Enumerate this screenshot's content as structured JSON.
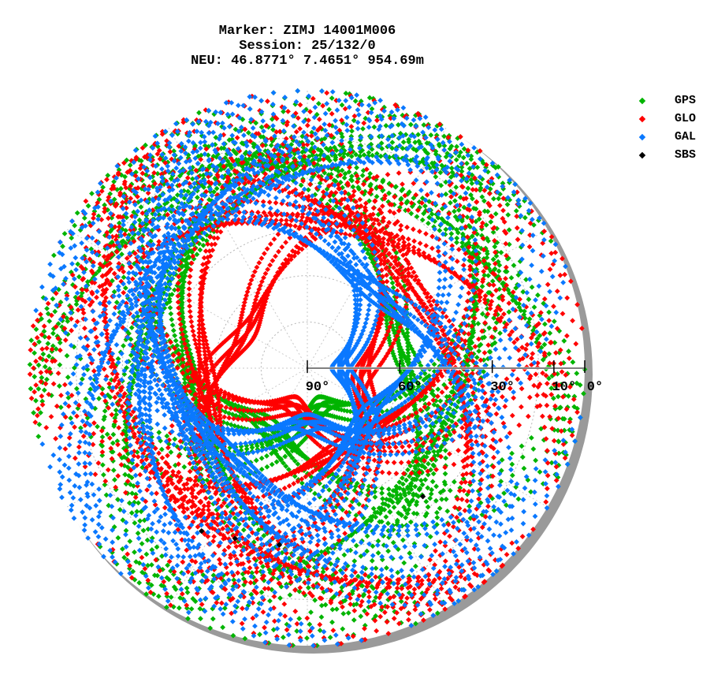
{
  "header": {
    "line1": "Marker: ZIMJ 14001M006",
    "line2": "Session: 25/132/0",
    "line3": "NEU: 46.8771° 7.4651° 954.69m"
  },
  "chart_data": {
    "type": "scatter",
    "projection": "polar sky plot (azimuth / elevation)",
    "radial_axis": "elevation",
    "elevation_ticks": [
      {
        "value": 90,
        "label": "90°"
      },
      {
        "value": 60,
        "label": "60°"
      },
      {
        "value": 30,
        "label": "30°"
      },
      {
        "value": 10,
        "label": "10°"
      },
      {
        "value": 0,
        "label": "0°"
      }
    ],
    "grid": true,
    "legend_position": "top-right",
    "series": [
      {
        "name": "GPS",
        "color": "#00b400",
        "tracks": [
          {
            "max_el": 62,
            "max_az": 75,
            "half_span": 80
          },
          {
            "max_el": 45,
            "max_az": 120,
            "half_span": 75
          },
          {
            "max_el": 70,
            "max_az": 215,
            "half_span": 85
          },
          {
            "max_el": 40,
            "max_az": 300,
            "half_span": 70
          },
          {
            "max_el": 80,
            "max_az": 160,
            "half_span": 90
          },
          {
            "max_el": 30,
            "max_az": 25,
            "half_span": 60
          },
          {
            "max_el": 55,
            "max_az": 255,
            "half_span": 80
          },
          {
            "max_el": 25,
            "max_az": 340,
            "half_span": 55
          }
        ]
      },
      {
        "name": "GLO",
        "color": "#ff0000",
        "tracks": [
          {
            "max_el": 80,
            "max_az": 200,
            "half_span": 95
          },
          {
            "max_el": 65,
            "max_az": 150,
            "half_span": 90
          },
          {
            "max_el": 75,
            "max_az": 100,
            "half_span": 90
          },
          {
            "max_el": 60,
            "max_az": 260,
            "half_span": 85
          },
          {
            "max_el": 50,
            "max_az": 55,
            "half_span": 80
          },
          {
            "max_el": 70,
            "max_az": 300,
            "half_span": 90
          },
          {
            "max_el": 45,
            "max_az": 10,
            "half_span": 75
          },
          {
            "max_el": 35,
            "max_az": 230,
            "half_span": 70
          }
        ]
      },
      {
        "name": "GAL",
        "color": "#0a78ff",
        "tracks": [
          {
            "max_el": 75,
            "max_az": 180,
            "half_span": 90
          },
          {
            "max_el": 68,
            "max_az": 130,
            "half_span": 85
          },
          {
            "max_el": 55,
            "max_az": 225,
            "half_span": 85
          },
          {
            "max_el": 82,
            "max_az": 90,
            "half_span": 95
          },
          {
            "max_el": 40,
            "max_az": 280,
            "half_span": 75
          },
          {
            "max_el": 60,
            "max_az": 40,
            "half_span": 80
          },
          {
            "max_el": 35,
            "max_az": 320,
            "half_span": 65
          },
          {
            "max_el": 50,
            "max_az": 245,
            "half_span": 80
          }
        ]
      },
      {
        "name": "SBS",
        "color": "#000000",
        "points": [
          {
            "azimuth": 213,
            "elevation": 27
          },
          {
            "azimuth": 203,
            "elevation": 30
          },
          {
            "azimuth": 189,
            "elevation": 32
          },
          {
            "azimuth": 138,
            "elevation": 34
          }
        ]
      }
    ]
  }
}
